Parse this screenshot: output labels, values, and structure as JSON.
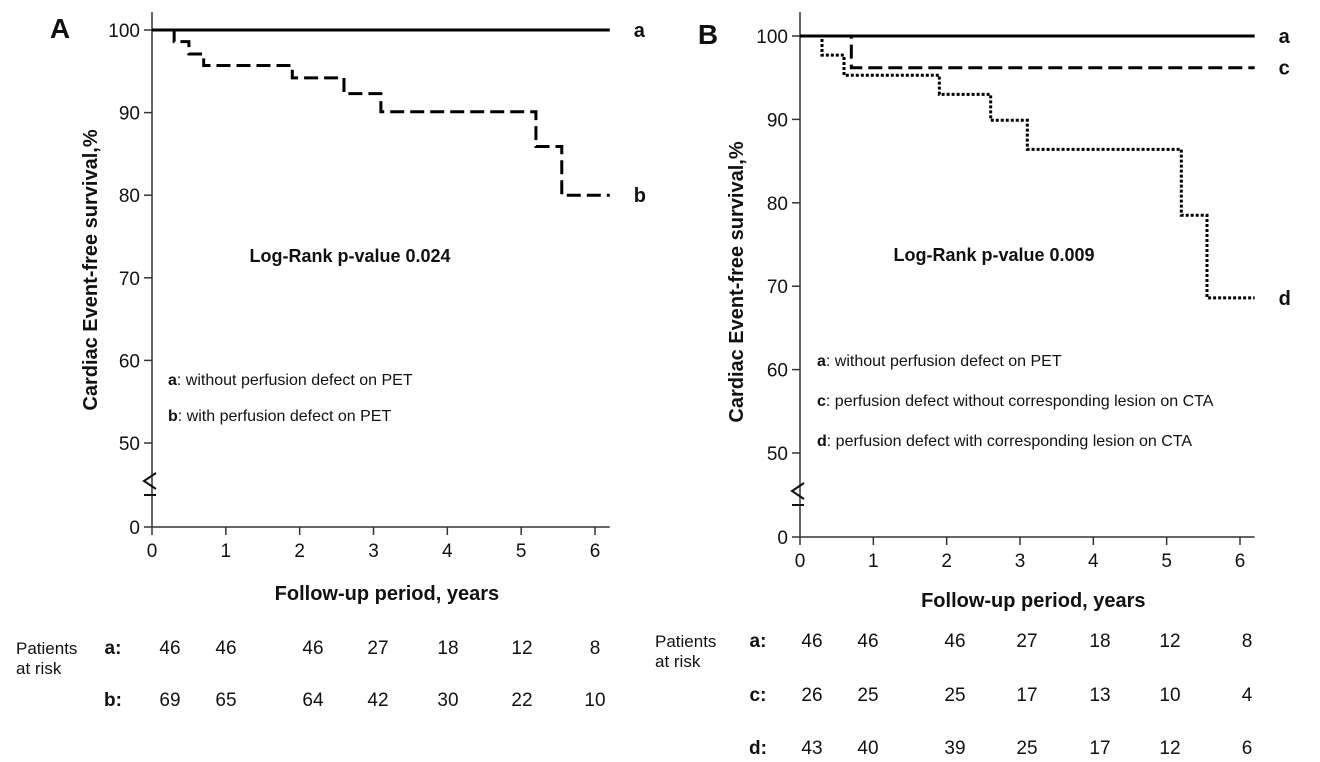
{
  "chart_data": [
    {
      "type": "line",
      "panel_label": "A",
      "xlabel": "Follow-up period, years",
      "ylabel": "Cardiac Event-free survival,%",
      "xlim": [
        0,
        6.2
      ],
      "ylim": [
        50,
        102
      ],
      "x_ticks": [
        0,
        1,
        2,
        3,
        4,
        5,
        6
      ],
      "y_ticks": [
        50,
        60,
        70,
        80,
        90,
        100
      ],
      "y_break_tick": "0",
      "grid": false,
      "annotation": "Log-Rank p-value 0.024",
      "series": [
        {
          "name": "a",
          "line_style": "solid",
          "color": "#000000",
          "x": [
            0,
            6.2
          ],
          "y": [
            100,
            100
          ]
        },
        {
          "name": "b",
          "line_style": "dashed",
          "color": "#000000",
          "x": [
            0,
            0.3,
            0.5,
            0.7,
            1.9,
            2.6,
            3.1,
            5.2,
            5.55,
            6.2
          ],
          "y": [
            100,
            98.6,
            97.1,
            95.7,
            94.2,
            92.3,
            90.1,
            85.9,
            80.0,
            80.0
          ]
        }
      ],
      "legend": [
        {
          "key": "a",
          "text": ": without perfusion defect on PET"
        },
        {
          "key": "b",
          "text": ": with perfusion defect on PET"
        }
      ],
      "risk_table": {
        "header": [
          "Patients",
          "at risk"
        ],
        "rows": [
          {
            "key": "a:",
            "values": [
              46,
              46,
              46,
              27,
              18,
              12,
              8
            ]
          },
          {
            "key": "b:",
            "values": [
              69,
              65,
              64,
              42,
              30,
              22,
              10
            ]
          }
        ]
      }
    },
    {
      "type": "line",
      "panel_label": "B",
      "xlabel": "Follow-up period, years",
      "ylabel": "Cardiac Event-free survival,%",
      "xlim": [
        0,
        6.2
      ],
      "ylim": [
        50,
        102
      ],
      "x_ticks": [
        0,
        1,
        2,
        3,
        4,
        5,
        6
      ],
      "y_ticks": [
        50,
        60,
        70,
        80,
        90,
        100
      ],
      "y_break_tick": "0",
      "grid": false,
      "annotation": "Log-Rank p-value 0.009",
      "series": [
        {
          "name": "a",
          "line_style": "solid",
          "color": "#000000",
          "x": [
            0,
            6.2
          ],
          "y": [
            100,
            100
          ]
        },
        {
          "name": "c",
          "line_style": "dashed",
          "color": "#000000",
          "x": [
            0,
            0.7,
            6.2
          ],
          "y": [
            100,
            96.2,
            96.2
          ]
        },
        {
          "name": "d",
          "line_style": "dotted",
          "color": "#000000",
          "x": [
            0,
            0.3,
            0.6,
            1.9,
            2.6,
            3.1,
            5.2,
            5.55,
            6.2
          ],
          "y": [
            100,
            97.7,
            95.3,
            93.0,
            89.9,
            86.4,
            78.5,
            68.6,
            68.6
          ]
        }
      ],
      "legend": [
        {
          "key": "a",
          "text": ": without perfusion defect on PET"
        },
        {
          "key": "c",
          "text": ": perfusion defect without corresponding lesion on CTA"
        },
        {
          "key": "d",
          "text": ": perfusion defect with corresponding lesion on CTA"
        }
      ],
      "risk_table": {
        "header": [
          "Patients",
          "at risk"
        ],
        "rows": [
          {
            "key": "a:",
            "values": [
              46,
              46,
              46,
              27,
              18,
              12,
              8
            ]
          },
          {
            "key": "c:",
            "values": [
              26,
              25,
              25,
              17,
              13,
              10,
              4
            ]
          },
          {
            "key": "d:",
            "values": [
              43,
              40,
              39,
              25,
              17,
              12,
              6
            ]
          }
        ]
      }
    }
  ]
}
